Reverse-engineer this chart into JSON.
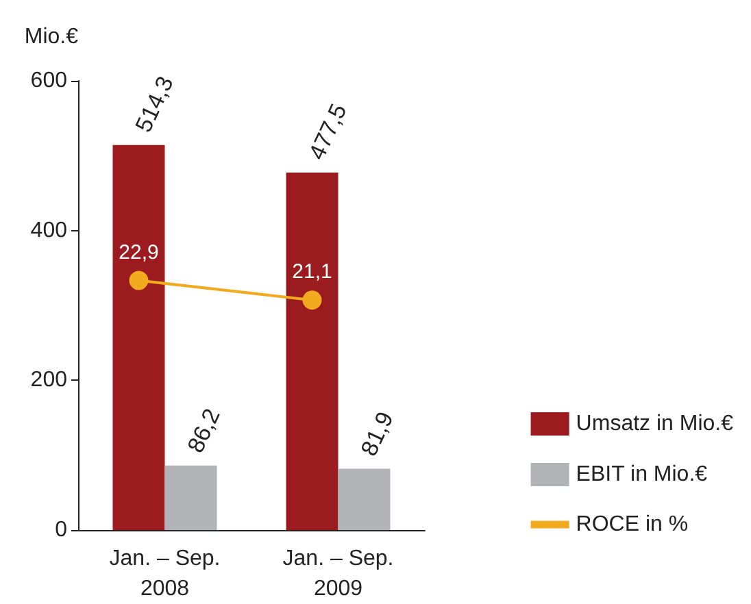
{
  "chart_data": {
    "type": "bar",
    "ylabel": "Mio.€",
    "categories": [
      "Jan. – Sep.\n2008",
      "Jan. – Sep.\n2009"
    ],
    "series": [
      {
        "name": "Umsatz in Mio.€",
        "color": "#9b1b1f",
        "values": [
          514.3,
          477.5
        ],
        "value_labels": [
          "514,3",
          "477,5"
        ]
      },
      {
        "name": "EBIT in Mio.€",
        "color": "#b2b3b6",
        "values": [
          86.2,
          81.9
        ],
        "value_labels": [
          "86,2",
          "81,9"
        ]
      },
      {
        "name": "ROCE in %",
        "type": "line",
        "axis": "y2",
        "color": "#f2ab1f",
        "values": [
          22.9,
          21.1
        ],
        "value_labels": [
          "22,9",
          "21,1"
        ],
        "marker": "circle"
      }
    ],
    "ylim": [
      0,
      600
    ],
    "yticks": [
      0,
      200,
      400,
      600
    ],
    "grid": false,
    "legend": "bottom right"
  }
}
